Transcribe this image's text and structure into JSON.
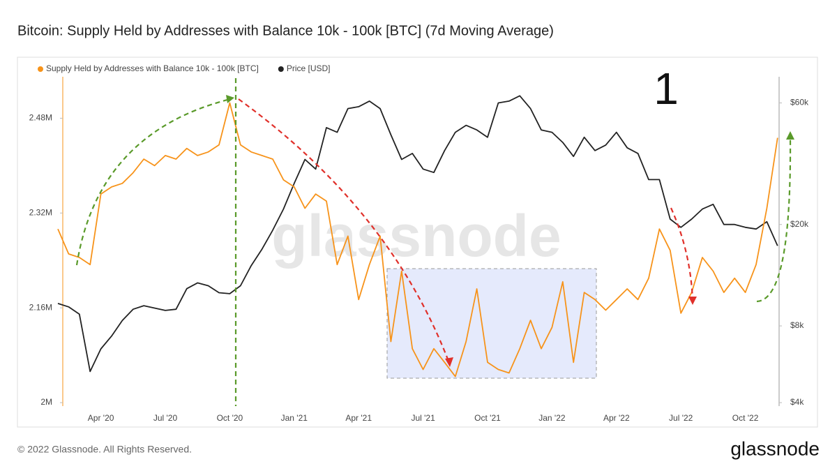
{
  "chart_data": {
    "type": "line",
    "title": "Bitcoin: Supply Held by Addresses with Balance 10k - 100k [BTC] (7d Moving Average)",
    "annotation": "1",
    "watermark": "glassnode",
    "footer": "© 2022 Glassnode. All Rights Reserved.",
    "brand": "glassnode",
    "legend": "top-left",
    "categories": [
      null,
      null,
      null,
      null,
      "Apr '20",
      null,
      null,
      null,
      null,
      null,
      "Jul '20",
      null,
      null,
      null,
      null,
      null,
      "Oct '20",
      null,
      null,
      null,
      null,
      null,
      "Jan '21",
      null,
      null,
      null,
      null,
      null,
      "Apr '21",
      null,
      null,
      null,
      null,
      null,
      "Jul '21",
      null,
      null,
      null,
      null,
      null,
      "Oct '21",
      null,
      null,
      null,
      null,
      null,
      "Jan '22",
      null,
      null,
      null,
      null,
      null,
      "Apr '22",
      null,
      null,
      null,
      null,
      null,
      "Jul '22",
      null,
      null,
      null,
      null,
      null,
      "Oct '22",
      null,
      null,
      null
    ],
    "series": [
      {
        "name": "Supply Held by Addresses with Balance 10k - 100k [BTC]",
        "color": "#f7931a",
        "axis": "y",
        "values": [
          2293000,
          2251000,
          2245000,
          2233000,
          2352000,
          2364000,
          2370000,
          2388000,
          2411000,
          2400000,
          2417000,
          2411000,
          2429000,
          2417000,
          2423000,
          2435000,
          2506000,
          2435000,
          2423000,
          2417000,
          2411000,
          2376000,
          2364000,
          2328000,
          2352000,
          2340000,
          2233000,
          2281000,
          2174000,
          2233000,
          2281000,
          2103000,
          2222000,
          2091000,
          2056000,
          2091000,
          2068000,
          2044000,
          2103000,
          2192000,
          2068000,
          2056000,
          2050000,
          2091000,
          2139000,
          2091000,
          2127000,
          2204000,
          2068000,
          2186000,
          2174000,
          2156000,
          2174000,
          2192000,
          2174000,
          2210000,
          2293000,
          2257000,
          2151000,
          2186000,
          2245000,
          2222000,
          2186000,
          2210000,
          2186000,
          2233000,
          2328000,
          2447000
        ]
      },
      {
        "name": "Price [USD]",
        "color": "#222222",
        "axis": "y2",
        "values": [
          9800,
          9500,
          8900,
          5300,
          6500,
          7300,
          8400,
          9300,
          9600,
          9400,
          9200,
          9300,
          11200,
          11800,
          11500,
          10800,
          10700,
          11500,
          13800,
          16000,
          19000,
          23000,
          29000,
          36000,
          33000,
          48000,
          46000,
          57000,
          58000,
          61000,
          57000,
          45000,
          36000,
          38000,
          33000,
          32000,
          39000,
          46000,
          49000,
          47000,
          44000,
          60000,
          61000,
          64000,
          57000,
          47000,
          46000,
          42000,
          37000,
          44000,
          39000,
          41000,
          46000,
          40000,
          38000,
          30000,
          30000,
          21000,
          19500,
          21000,
          23000,
          24000,
          20000,
          20000,
          19500,
          19200,
          20500,
          16500
        ]
      }
    ],
    "ylim": [
      2000000,
      2550000
    ],
    "yticks": [
      {
        "value": 2000000,
        "label": "2M"
      },
      {
        "value": 2160000,
        "label": "2.16M"
      },
      {
        "value": 2320000,
        "label": "2.32M"
      },
      {
        "value": 2480000,
        "label": "2.48M"
      }
    ],
    "y2lim": [
      4000,
      76000
    ],
    "y2log": true,
    "y2ticks": [
      {
        "value": 4000,
        "label": "$4k"
      },
      {
        "value": 8000,
        "label": "$8k"
      },
      {
        "value": 20000,
        "label": "$20k"
      },
      {
        "value": 60000,
        "label": "$60k"
      }
    ],
    "grid": false
  }
}
